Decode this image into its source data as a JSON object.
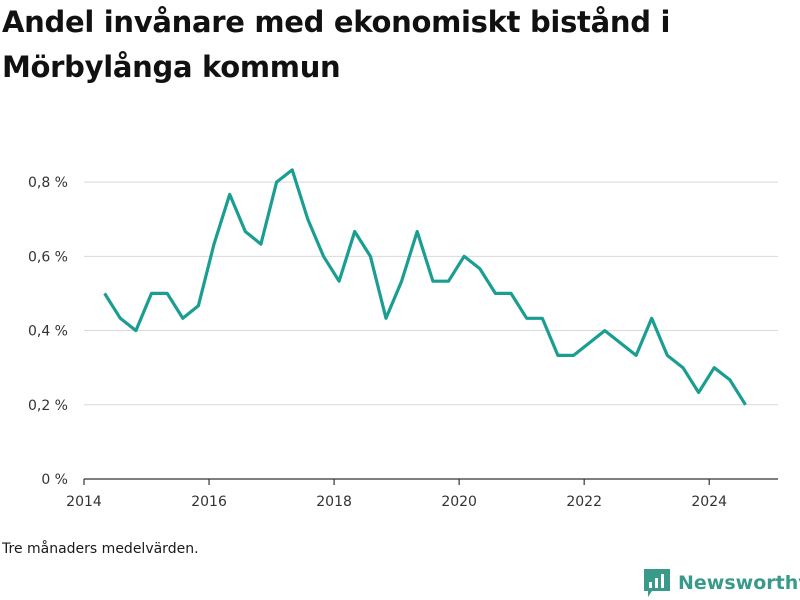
{
  "chart_data": {
    "type": "line",
    "title": "Andel invånare med ekonomiskt bistånd i Mörbylånga kommun",
    "note": "Tre månaders medelvärden.",
    "xlabel": "",
    "ylabel": "",
    "ylim": [
      0,
      0.9
    ],
    "yticks": [
      0,
      0.2,
      0.4,
      0.6,
      0.8
    ],
    "ytick_labels": [
      "0 %",
      "0,2 %",
      "0,4 %",
      "0,6 %",
      "0,8 %"
    ],
    "xlim": [
      2014.0,
      2025.1
    ],
    "xticks": [
      2014,
      2016,
      2018,
      2020,
      2022,
      2024
    ],
    "xtick_labels": [
      "2014",
      "2016",
      "2018",
      "2020",
      "2022",
      "2024"
    ],
    "grid": "horizontal",
    "line_color": "#1a9e92",
    "series": [
      {
        "name": "",
        "points": [
          [
            2014.33,
            0.5
          ],
          [
            2014.58,
            0.433
          ],
          [
            2014.83,
            0.4
          ],
          [
            2015.08,
            0.5
          ],
          [
            2015.33,
            0.5
          ],
          [
            2015.58,
            0.433
          ],
          [
            2015.83,
            0.467
          ],
          [
            2016.08,
            0.633
          ],
          [
            2016.33,
            0.767
          ],
          [
            2016.58,
            0.667
          ],
          [
            2016.83,
            0.633
          ],
          [
            2017.08,
            0.8
          ],
          [
            2017.33,
            0.833
          ],
          [
            2017.58,
            0.7
          ],
          [
            2017.83,
            0.6
          ],
          [
            2018.08,
            0.533
          ],
          [
            2018.33,
            0.667
          ],
          [
            2018.58,
            0.6
          ],
          [
            2018.83,
            0.433
          ],
          [
            2019.08,
            0.533
          ],
          [
            2019.33,
            0.667
          ],
          [
            2019.58,
            0.533
          ],
          [
            2019.83,
            0.533
          ],
          [
            2020.08,
            0.6
          ],
          [
            2020.33,
            0.567
          ],
          [
            2020.58,
            0.5
          ],
          [
            2020.83,
            0.5
          ],
          [
            2021.08,
            0.433
          ],
          [
            2021.33,
            0.433
          ],
          [
            2021.58,
            0.333
          ],
          [
            2021.83,
            0.333
          ],
          [
            2022.33,
            0.4
          ],
          [
            2022.83,
            0.333
          ],
          [
            2023.08,
            0.433
          ],
          [
            2023.33,
            0.333
          ],
          [
            2023.58,
            0.3
          ],
          [
            2023.83,
            0.233
          ],
          [
            2024.08,
            0.3
          ],
          [
            2024.33,
            0.267
          ],
          [
            2024.58,
            0.2
          ]
        ]
      }
    ]
  },
  "brand": {
    "name": "Newsworthy",
    "logo_icon": "newsworthy-chart-logo-icon",
    "color": "#3a9a8a"
  }
}
